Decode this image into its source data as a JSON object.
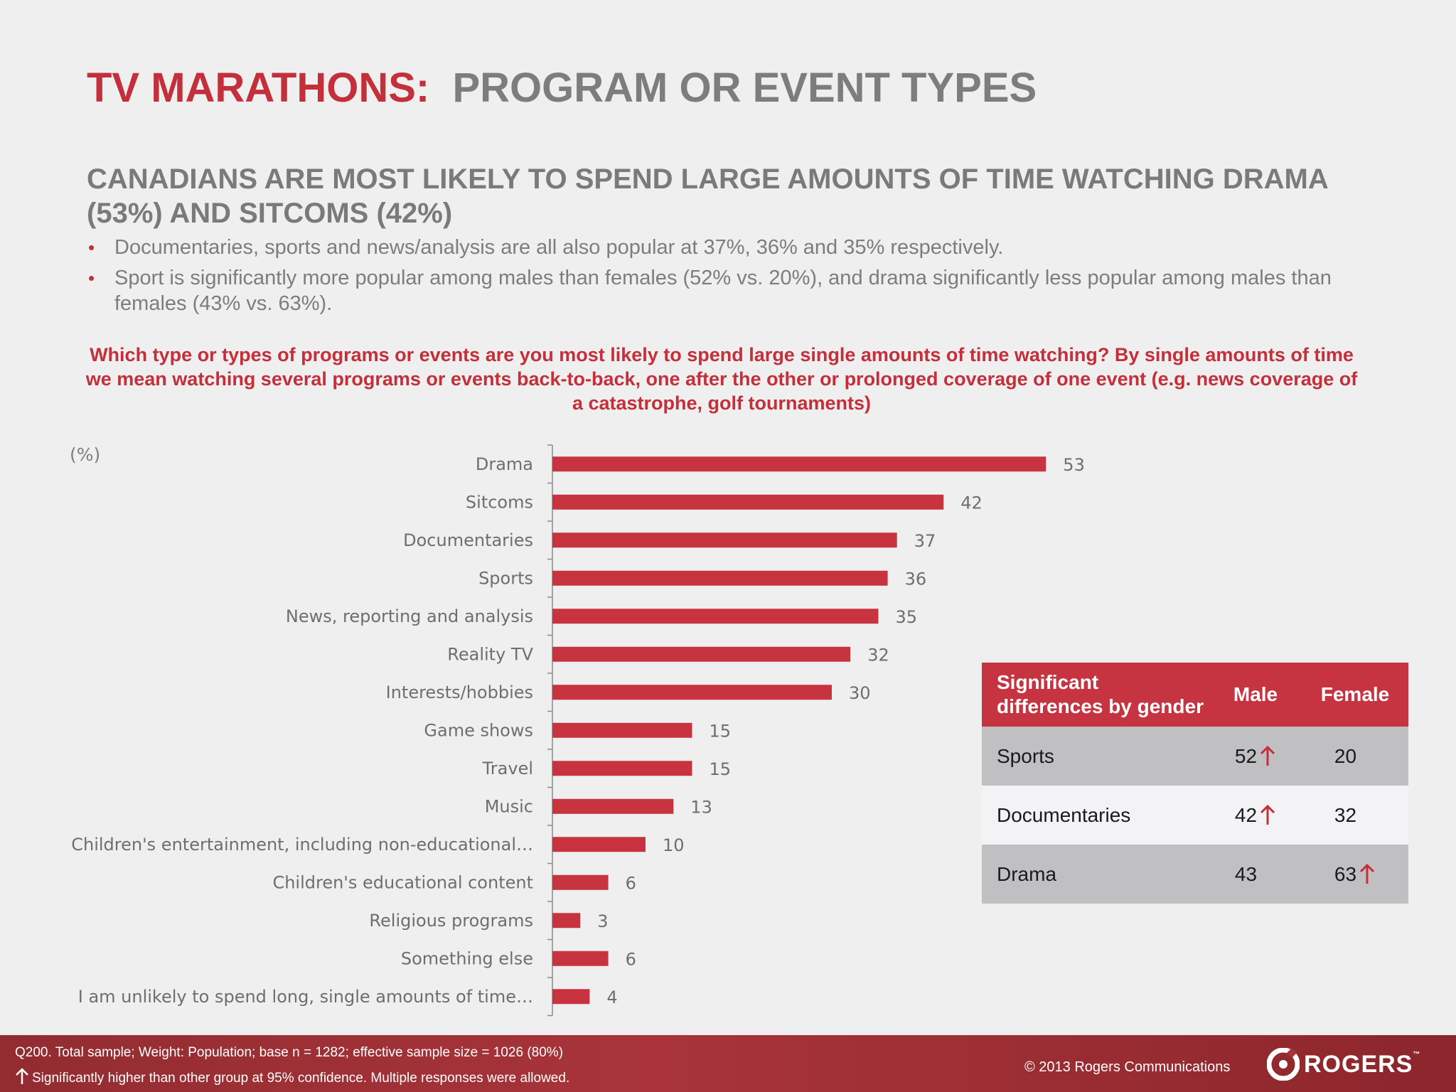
{
  "slide": {
    "title_red": "TV MARATHONS:",
    "title_grey": "PROGRAM OR EVENT TYPES",
    "headline": "CANADIANS ARE MOST LIKELY TO SPEND LARGE AMOUNTS OF TIME WATCHING DRAMA (53%) AND SITCOMS (42%)",
    "bullets": [
      "Documentaries, sports and news/analysis are all also popular at 37%, 36% and 35% respectively.",
      "Sport is significantly more popular among males than females (52% vs. 20%), and drama significantly less popular among males than females (43% vs. 63%)."
    ],
    "bullet_symbol": "•",
    "question": "Which type or types of programs or events are you most likely to spend large single amounts of time watching? By single amounts of time we mean watching several programs or events back-to-back, one after the other or prolonged coverage of one event (e.g. news coverage of a catastrophe, golf tournaments)"
  },
  "chart_data": {
    "type": "bar",
    "orientation": "horizontal",
    "unit_label": "(%)",
    "categories": [
      "Drama",
      "Sitcoms",
      "Documentaries",
      "Sports",
      "News, reporting and analysis",
      "Reality TV",
      "Interests/hobbies",
      "Game shows",
      "Travel",
      "Music",
      "Children's entertainment, including non-educational…",
      "Children's educational content",
      "Religious programs",
      "Something else",
      "I am unlikely to spend long, single amounts of time…"
    ],
    "values": [
      53,
      42,
      37,
      36,
      35,
      32,
      30,
      15,
      15,
      13,
      10,
      6,
      3,
      6,
      4
    ],
    "data_labels": true,
    "bar_color": "#c7333e",
    "grid": false,
    "legend": "none"
  },
  "table": {
    "header": {
      "line1": "Significant",
      "line2": "differences by gender",
      "male": "Male",
      "female": "Female"
    },
    "rows": [
      {
        "category": "Sports",
        "male": "52",
        "female": "20",
        "higher": "male"
      },
      {
        "category": "Documentaries",
        "male": "42",
        "female": "32",
        "higher": "male"
      },
      {
        "category": "Drama",
        "male": "43",
        "female": "63",
        "higher": "female"
      }
    ],
    "header_color": "#c53440",
    "arrow_color": "#c32f3a",
    "arrow_icon": "up-arrow-icon"
  },
  "footer": {
    "note1": "Q200. Total sample; Weight: Population; base n = 1282; effective sample size = 1026 (80%)",
    "note2": "Significantly higher than other group at 95% confidence. Multiple responses were allowed.",
    "copyright": "© 2013 Rogers Communications",
    "logo_text": "ROGERS",
    "logo_mark": "™"
  }
}
